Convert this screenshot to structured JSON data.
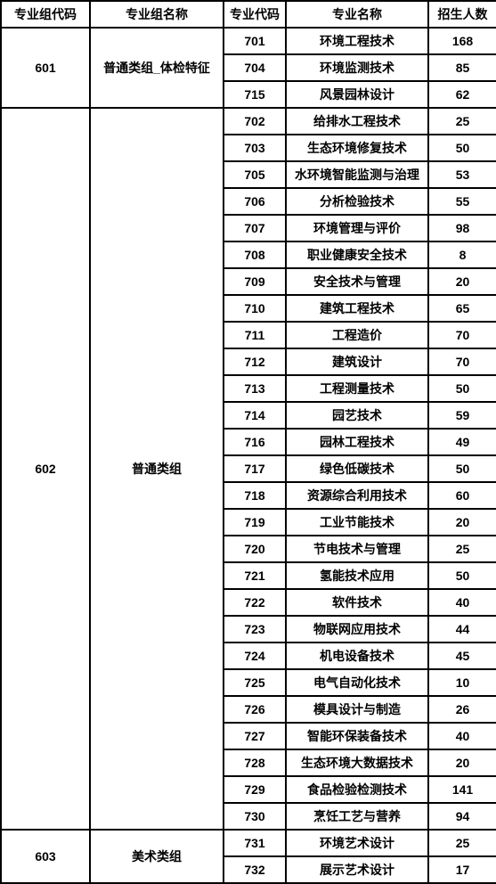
{
  "columns": [
    "专业组代码",
    "专业组名称",
    "专业代码",
    "专业名称",
    "招生人数"
  ],
  "groups": [
    {
      "code": "601",
      "name": "普通类组_体检特征",
      "rows": [
        {
          "code": "701",
          "name": "环境工程技术",
          "count": "168"
        },
        {
          "code": "704",
          "name": "环境监测技术",
          "count": "85"
        },
        {
          "code": "715",
          "name": "风景园林设计",
          "count": "62"
        }
      ]
    },
    {
      "code": "602",
      "name": "普通类组",
      "rows": [
        {
          "code": "702",
          "name": "给排水工程技术",
          "count": "25"
        },
        {
          "code": "703",
          "name": "生态环境修复技术",
          "count": "50"
        },
        {
          "code": "705",
          "name": "水环境智能监测与治理",
          "count": "53"
        },
        {
          "code": "706",
          "name": "分析检验技术",
          "count": "55"
        },
        {
          "code": "707",
          "name": "环境管理与评价",
          "count": "98"
        },
        {
          "code": "708",
          "name": "职业健康安全技术",
          "count": "8"
        },
        {
          "code": "709",
          "name": "安全技术与管理",
          "count": "20"
        },
        {
          "code": "710",
          "name": "建筑工程技术",
          "count": "65"
        },
        {
          "code": "711",
          "name": "工程造价",
          "count": "70"
        },
        {
          "code": "712",
          "name": "建筑设计",
          "count": "70"
        },
        {
          "code": "713",
          "name": "工程测量技术",
          "count": "50"
        },
        {
          "code": "714",
          "name": "园艺技术",
          "count": "59"
        },
        {
          "code": "716",
          "name": "园林工程技术",
          "count": "49"
        },
        {
          "code": "717",
          "name": "绿色低碳技术",
          "count": "50"
        },
        {
          "code": "718",
          "name": "资源综合利用技术",
          "count": "60"
        },
        {
          "code": "719",
          "name": "工业节能技术",
          "count": "20"
        },
        {
          "code": "720",
          "name": "节电技术与管理",
          "count": "25"
        },
        {
          "code": "721",
          "name": "氢能技术应用",
          "count": "50"
        },
        {
          "code": "722",
          "name": "软件技术",
          "count": "40"
        },
        {
          "code": "723",
          "name": "物联网应用技术",
          "count": "44"
        },
        {
          "code": "724",
          "name": "机电设备技术",
          "count": "45"
        },
        {
          "code": "725",
          "name": "电气自动化技术",
          "count": "10"
        },
        {
          "code": "726",
          "name": "模具设计与制造",
          "count": "26"
        },
        {
          "code": "727",
          "name": "智能环保装备技术",
          "count": "40"
        },
        {
          "code": "728",
          "name": "生态环境大数据技术",
          "count": "20"
        },
        {
          "code": "729",
          "name": "食品检验检测技术",
          "count": "141"
        },
        {
          "code": "730",
          "name": "烹饪工艺与营养",
          "count": "94"
        }
      ]
    },
    {
      "code": "603",
      "name": "美术类组",
      "rows": [
        {
          "code": "731",
          "name": "环境艺术设计",
          "count": "25"
        },
        {
          "code": "732",
          "name": "展示艺术设计",
          "count": "17"
        }
      ]
    }
  ]
}
